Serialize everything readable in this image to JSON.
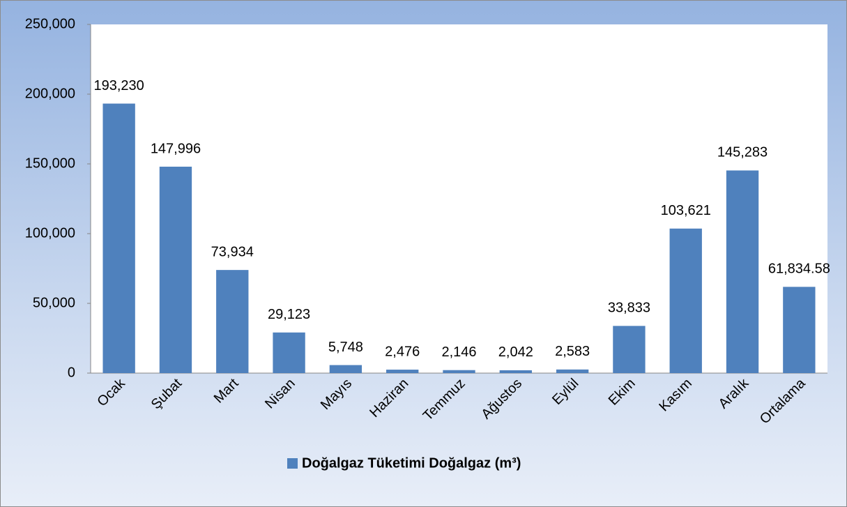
{
  "chart_data": {
    "type": "bar",
    "categories": [
      "Ocak",
      "Şubat",
      "Mart",
      "Nisan",
      "Mayıs",
      "Haziran",
      "Temmuz",
      "Ağustos",
      "Eylül",
      "Ekim",
      "Kasım",
      "Aralık",
      "Ortalama"
    ],
    "series": [
      {
        "name": "Doğalgaz Tüketimi Doğalgaz (m³)",
        "color": "#4f81bd",
        "values": [
          193230,
          147996,
          73934,
          29123,
          5748,
          2476,
          2146,
          2042,
          2583,
          33833,
          103621,
          145283,
          61834.58
        ],
        "value_labels": [
          "193,230",
          "147,996",
          "73,934",
          "29,123",
          "5,748",
          "2,476",
          "2,146",
          "2,042",
          "2,583",
          "33,833",
          "103,621",
          "145,283",
          "61,834.58"
        ]
      }
    ],
    "ylim": [
      0,
      250000
    ],
    "yticks": [
      0,
      {
        "value": 50000,
        "label": "50,000"
      },
      {
        "value": 100000,
        "label": "100,000"
      },
      {
        "value": 150000,
        "label": "150,000"
      },
      {
        "value": 200000,
        "label": "200,000"
      },
      {
        "value": 250000,
        "label": "250,000"
      }
    ],
    "legend": "bottom"
  }
}
